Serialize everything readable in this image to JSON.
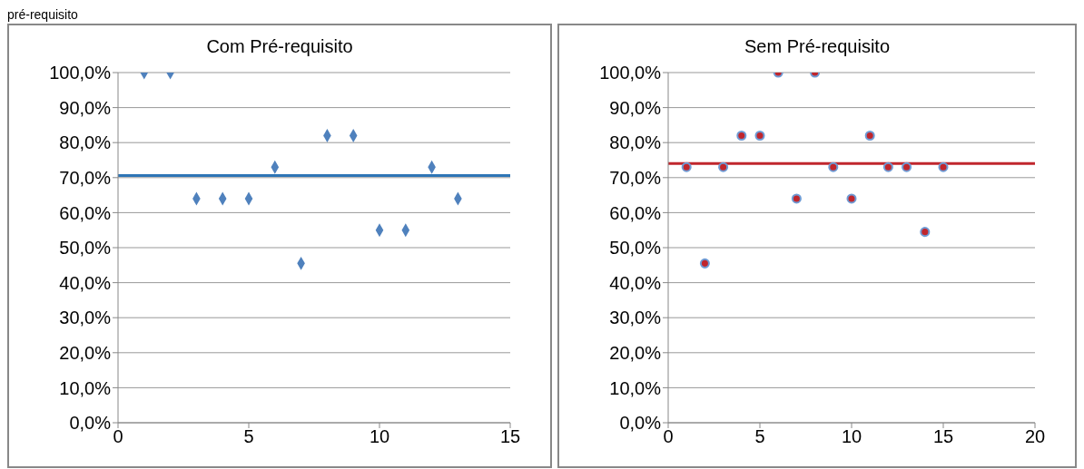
{
  "chart_data": [
    {
      "type": "scatter",
      "title": "Com Pré-requisito",
      "annotations": [
        "pré-requisito"
      ],
      "x": [
        1,
        2,
        3,
        4,
        5,
        6,
        7,
        8,
        9,
        10,
        11,
        12,
        13
      ],
      "series": [
        {
          "color": "#4f81bd",
          "values": [
            100,
            100,
            64,
            64,
            64,
            73,
            45.5,
            82,
            82,
            55,
            55,
            73,
            64
          ]
        }
      ],
      "marker": "diamond",
      "xlim": [
        0,
        15
      ],
      "xticks": [
        0,
        5,
        10,
        15
      ],
      "ylim": [
        0,
        100
      ],
      "yticks": [
        {
          "value": 0,
          "label": "0,0%"
        },
        {
          "value": 10,
          "label": "10,0%"
        },
        {
          "value": 20,
          "label": "20,0%"
        },
        {
          "value": 30,
          "label": "30,0%"
        },
        {
          "value": 40,
          "label": "40,0%"
        },
        {
          "value": 50,
          "label": "50,0%"
        },
        {
          "value": 60,
          "label": "60,0%"
        },
        {
          "value": 70,
          "label": "70,0%"
        },
        {
          "value": 80,
          "label": "80,0%"
        },
        {
          "value": 90,
          "label": "90,0%"
        },
        {
          "value": 100,
          "label": "100,0%"
        }
      ],
      "grid": "y",
      "ref_lines": [
        {
          "axis": "y",
          "value": 70.6,
          "color": "#2e75b6"
        }
      ]
    },
    {
      "type": "scatter",
      "title": "Sem Pré-requisito",
      "x": [
        1,
        2,
        3,
        4,
        5,
        6,
        7,
        8,
        9,
        10,
        11,
        12,
        13,
        14,
        15
      ],
      "series": [
        {
          "color": "#c0262d",
          "values": [
            73,
            45.5,
            73,
            82,
            82,
            100,
            64,
            100,
            73,
            64,
            82,
            73,
            73,
            54.5,
            73
          ]
        }
      ],
      "marker": "circle",
      "xlim": [
        0,
        20
      ],
      "xticks": [
        0,
        5,
        10,
        15,
        20
      ],
      "ylim": [
        0,
        100
      ],
      "yticks": [
        {
          "value": 0,
          "label": "0,0%"
        },
        {
          "value": 10,
          "label": "10,0%"
        },
        {
          "value": 20,
          "label": "20,0%"
        },
        {
          "value": 30,
          "label": "30,0%"
        },
        {
          "value": 40,
          "label": "40,0%"
        },
        {
          "value": 50,
          "label": "50,0%"
        },
        {
          "value": 60,
          "label": "60,0%"
        },
        {
          "value": 70,
          "label": "70,0%"
        },
        {
          "value": 80,
          "label": "80,0%"
        },
        {
          "value": 90,
          "label": "90,0%"
        },
        {
          "value": 100,
          "label": "100,0%"
        }
      ],
      "grid": "y",
      "ref_lines": [
        {
          "axis": "y",
          "value": 74,
          "color": "#c0262d"
        }
      ]
    }
  ]
}
